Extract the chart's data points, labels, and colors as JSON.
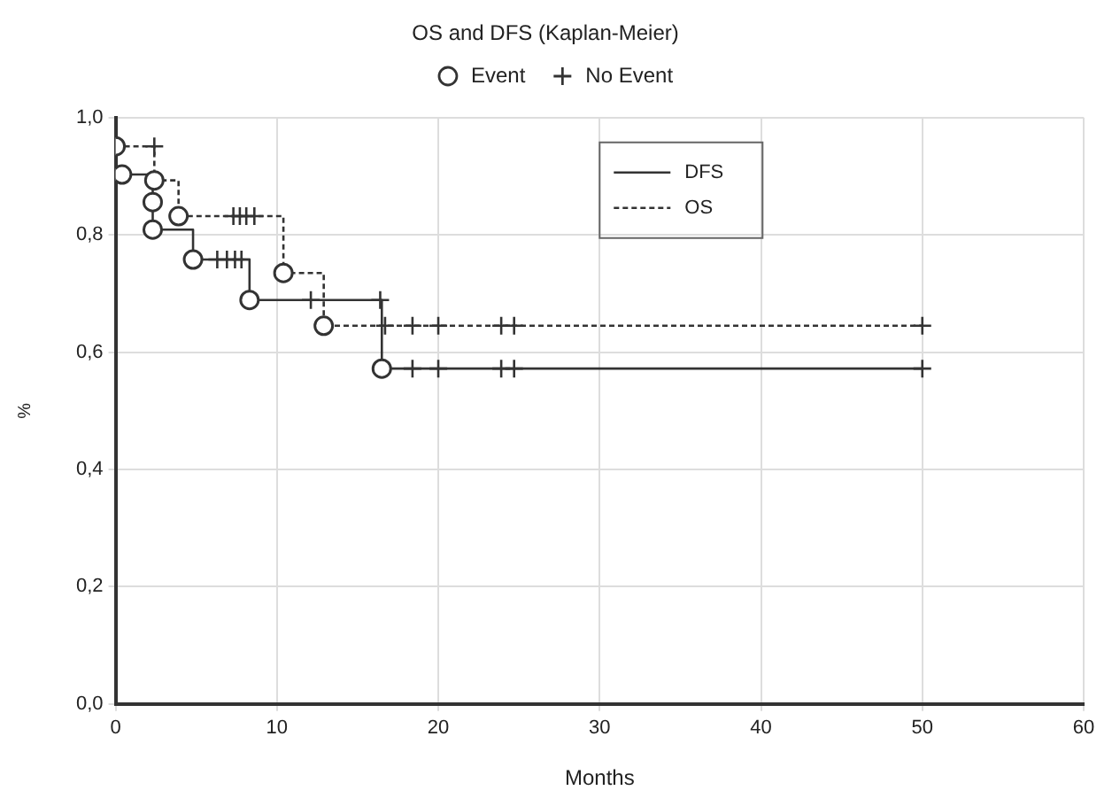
{
  "chart_data": {
    "type": "step",
    "title": "OS and DFS (Kaplan-Meier)",
    "xlabel": "Months",
    "ylabel": "%",
    "xlim": [
      0,
      60
    ],
    "xticks": [
      0,
      10,
      20,
      30,
      40,
      50,
      60
    ],
    "ylim": [
      0,
      1
    ],
    "yticks": [
      {
        "value": 0,
        "label": "0,0"
      },
      {
        "value": 0.2,
        "label": "0,2"
      },
      {
        "value": 0.4,
        "label": "0,4"
      },
      {
        "value": 0.6,
        "label": "0,6"
      },
      {
        "value": 0.8,
        "label": "0,8"
      },
      {
        "value": 1,
        "label": "1,0"
      }
    ],
    "grid": true,
    "legend": "top right",
    "series": [
      {
        "name": "DFS",
        "color": "#333333",
        "line_style": "solid",
        "x": [
          0,
          2.3,
          2.3,
          4.8,
          8.3,
          16.5,
          50
        ],
        "values": [
          0.903,
          0.856,
          0.809,
          0.758,
          0.689,
          0.572,
          0.572
        ]
      },
      {
        "name": "OS",
        "color": "#333333",
        "line_style": "dashed",
        "x": [
          0,
          2.4,
          3.9,
          10.4,
          12.9,
          50
        ],
        "values": [
          0.951,
          0.893,
          0.832,
          0.735,
          0.645,
          0.645
        ]
      },
      {
        "name": "Event",
        "type": "scatter",
        "marker": "circle",
        "color": "#333333",
        "x": [
          0,
          2.4,
          3.9,
          10.4,
          12.9,
          0.4,
          2.3,
          2.3,
          4.8,
          8.3,
          16.5
        ],
        "values": [
          0.951,
          0.893,
          0.832,
          0.735,
          0.645,
          0.903,
          0.856,
          0.809,
          0.758,
          0.689,
          0.572
        ]
      },
      {
        "name": "No Event",
        "type": "scatter",
        "marker": "cross",
        "color": "#333333",
        "x": [
          2.4,
          7.3,
          7.7,
          8.1,
          8.6,
          16.7,
          18.4,
          20,
          23.9,
          24.7,
          50,
          6.3,
          6.9,
          7.4,
          7.8,
          12.1,
          16.4,
          18.4,
          20,
          23.9,
          24.7,
          50
        ],
        "values": [
          0.951,
          0.832,
          0.832,
          0.832,
          0.832,
          0.645,
          0.645,
          0.645,
          0.645,
          0.645,
          0.645,
          0.758,
          0.758,
          0.758,
          0.758,
          0.689,
          0.689,
          0.572,
          0.572,
          0.572,
          0.572,
          0.572
        ]
      }
    ]
  }
}
